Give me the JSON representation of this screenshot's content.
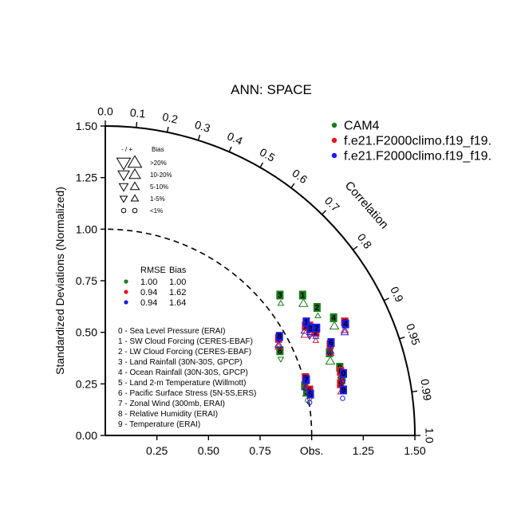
{
  "chart_data": {
    "type": "scatter",
    "subtype": "taylor-diagram",
    "title": "ANN: SPACE",
    "ylabel": "Standardized Deviations (Normalized)",
    "arc_label": "Correlation",
    "obs_label": "Obs.",
    "std_range": [
      0,
      1.5
    ],
    "x_ticks": [
      "0.25",
      "0.50",
      "0.75",
      "Obs.",
      "1.25",
      "1.50"
    ],
    "x_tick_values": [
      0.25,
      0.5,
      0.75,
      1.0,
      1.25,
      1.5
    ],
    "y_ticks": [
      "0.00",
      "0.25",
      "0.50",
      "0.75",
      "1.00",
      "1.25",
      "1.50"
    ],
    "y_tick_values": [
      0,
      0.25,
      0.5,
      0.75,
      1.0,
      1.25,
      1.5
    ],
    "corr_labels": [
      "0.0",
      "0.1",
      "0.2",
      "0.3",
      "0.4",
      "0.5",
      "0.6",
      "0.7",
      "0.8",
      "0.9",
      "0.95",
      "0.99",
      "1.0"
    ],
    "corr_values": [
      0.0,
      0.1,
      0.2,
      0.3,
      0.4,
      0.5,
      0.6,
      0.7,
      0.8,
      0.9,
      0.95,
      0.99,
      1.0
    ],
    "legend": {
      "placement": "top-right",
      "entries": [
        {
          "name": "CAM4",
          "color": "#1a7a1a"
        },
        {
          "name": "f.e21.F2000climo.f19_f19.",
          "color": "#e8141c"
        },
        {
          "name": "f.e21.F2000climo.f19_f19.",
          "color": "#1a1aee"
        }
      ]
    },
    "bias_key": {
      "header": [
        "- / +",
        "Bias"
      ],
      "rows": [
        {
          "label": ">20%",
          "size": 5
        },
        {
          "label": "10-20%",
          "size": 4
        },
        {
          "label": "5-10%",
          "size": 3
        },
        {
          "label": "1-5%",
          "size": 2
        },
        {
          "label": "<1%",
          "size": 1
        }
      ]
    },
    "stats_table": {
      "header": [
        "RMSE",
        "Bias"
      ],
      "rows": [
        {
          "color": "#1a7a1a",
          "rmse": "1.00",
          "bias": "1.00"
        },
        {
          "color": "#e8141c",
          "rmse": "0.94",
          "bias": "1.62"
        },
        {
          "color": "#1a1aee",
          "rmse": "0.94",
          "bias": "1.64"
        }
      ]
    },
    "variables": [
      "0 - Sea Level Pressure (ERAI)",
      "1 - SW Cloud Forcing (CERES-EBAF)",
      "2 - LW Cloud Forcing (CERES-EBAF)",
      "3 - Land Rainfall (30N-30S, GPCP)",
      "4 - Ocean Rainfall (30N-30S, GPCP)",
      "5 - Land 2-m Temperature (Willmott)",
      "6 - Pacific Surface Stress (5N-5S,ERS)",
      "7 - Zonal Wind (300mb, ERAI)",
      "8 - Relative Humidity (ERAI)",
      "9 - Temperature (ERAI)"
    ],
    "series": [
      {
        "name": "CAM4",
        "color": "#1a7a1a",
        "points": [
          {
            "id": "0",
            "x": 1.14,
            "y": 0.29,
            "marker": "tri-up",
            "size": 1
          },
          {
            "id": "1",
            "x": 0.96,
            "y": 0.64,
            "marker": "tri-up",
            "size": 3
          },
          {
            "id": "2",
            "x": 1.03,
            "y": 0.58,
            "marker": "tri-up",
            "size": 1
          },
          {
            "id": "3",
            "x": 0.85,
            "y": 0.64,
            "marker": "tri-up",
            "size": 1
          },
          {
            "id": "4",
            "x": 1.11,
            "y": 0.53,
            "marker": "tri-up",
            "size": 3
          },
          {
            "id": "5",
            "x": 0.98,
            "y": 0.17,
            "marker": "circle",
            "size": 1
          },
          {
            "id": "6",
            "x": 1.09,
            "y": 0.36,
            "marker": "tri-up",
            "size": 3
          },
          {
            "id": "7",
            "x": 0.97,
            "y": 0.2,
            "marker": "tri-up",
            "size": 1
          },
          {
            "id": "8",
            "x": 0.85,
            "y": 0.37,
            "marker": "tri-down",
            "size": 1
          },
          {
            "id": "9",
            "x": 1.15,
            "y": 0.23,
            "marker": "circle",
            "size": 1
          }
        ]
      },
      {
        "name": "f.e21.F2000climo.f19_f19.",
        "color": "#e8141c",
        "points": [
          {
            "id": "0",
            "x": 1.14,
            "y": 0.27,
            "marker": "tri-down",
            "size": 1
          },
          {
            "id": "1",
            "x": 0.97,
            "y": 0.49,
            "marker": "tri-up",
            "size": 3
          },
          {
            "id": "2",
            "x": 1.02,
            "y": 0.46,
            "marker": "tri-up",
            "size": 1
          },
          {
            "id": "3",
            "x": 0.99,
            "y": 0.49,
            "marker": "tri-down",
            "size": 1
          },
          {
            "id": "4",
            "x": 1.16,
            "y": 0.51,
            "marker": "tri-up",
            "size": 2
          },
          {
            "id": "5",
            "x": 0.99,
            "y": 0.18,
            "marker": "circle",
            "size": 1
          },
          {
            "id": "6",
            "x": 1.09,
            "y": 0.4,
            "marker": "tri-up",
            "size": 2
          },
          {
            "id": "7",
            "x": 0.97,
            "y": 0.24,
            "marker": "tri-up",
            "size": 1
          },
          {
            "id": "8",
            "x": 0.84,
            "y": 0.43,
            "marker": "tri-up",
            "size": 2
          },
          {
            "id": "9",
            "x": 1.14,
            "y": 0.21,
            "marker": "tri-up",
            "size": 1
          }
        ]
      },
      {
        "name": "f.e21.F2000climo.f19_f19.",
        "color": "#1a1aee",
        "points": [
          {
            "id": "0",
            "x": 1.15,
            "y": 0.26,
            "marker": "tri-down",
            "size": 1
          },
          {
            "id": "1",
            "x": 0.97,
            "y": 0.51,
            "marker": "tri-up",
            "size": 3
          },
          {
            "id": "2",
            "x": 1.02,
            "y": 0.48,
            "marker": "tri-up",
            "size": 1
          },
          {
            "id": "3",
            "x": 0.99,
            "y": 0.48,
            "marker": "tri-down",
            "size": 1
          },
          {
            "id": "4",
            "x": 1.16,
            "y": 0.5,
            "marker": "tri-up",
            "size": 2
          },
          {
            "id": "5",
            "x": 0.99,
            "y": 0.16,
            "marker": "circle",
            "size": 1
          },
          {
            "id": "6",
            "x": 1.09,
            "y": 0.41,
            "marker": "tri-up",
            "size": 2
          },
          {
            "id": "7",
            "x": 0.97,
            "y": 0.23,
            "marker": "tri-up",
            "size": 1
          },
          {
            "id": "8",
            "x": 0.84,
            "y": 0.44,
            "marker": "tri-up",
            "size": 2
          },
          {
            "id": "9",
            "x": 1.15,
            "y": 0.18,
            "marker": "circle",
            "size": 1
          }
        ]
      }
    ]
  }
}
